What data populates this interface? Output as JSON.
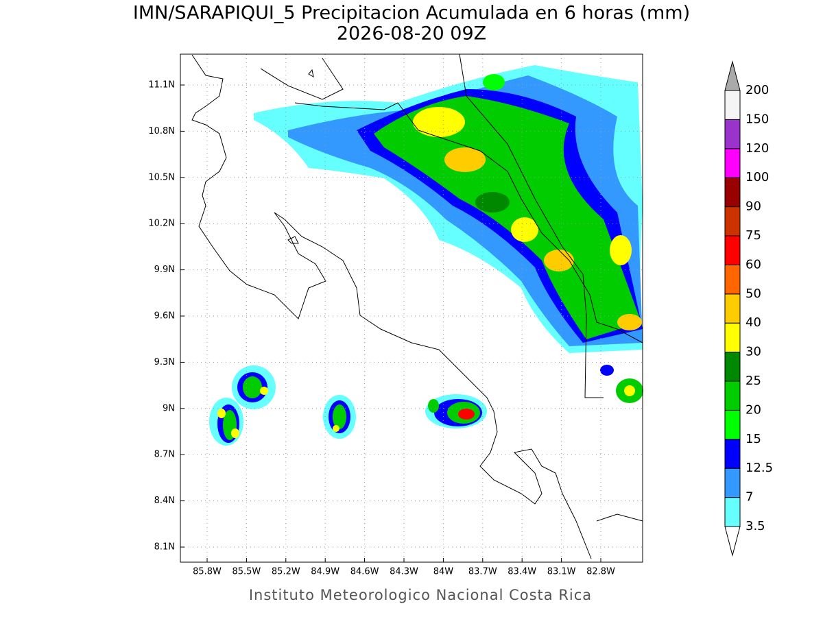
{
  "title": [
    "IMN/SARAPIQUI_5 Precipitacion Acumulada en 6 horas (mm)",
    "2026-08-20 09Z"
  ],
  "map": {
    "lat_ticks": [
      "11.1N",
      "10.8N",
      "10.5N",
      "10.2N",
      "9.9N",
      "9.6N",
      "9.3N",
      "9N",
      "8.7N",
      "8.4N",
      "8.1N"
    ],
    "lon_ticks": [
      "85.8W",
      "85.5W",
      "85.2W",
      "84.9W",
      "84.6W",
      "84.3W",
      "84W",
      "83.7W",
      "83.4W",
      "83.1W",
      "82.8W"
    ]
  },
  "colorbar": {
    "levels": [
      "3.5",
      "7",
      "12.5",
      "15",
      "20",
      "25",
      "30",
      "40",
      "50",
      "60",
      "75",
      "90",
      "100",
      "120",
      "150",
      "200"
    ],
    "colors": [
      "#66ffff",
      "#3399ff",
      "#0000ff",
      "#00ff00",
      "#00cc00",
      "#008800",
      "#ffff00",
      "#ffcc00",
      "#ff6600",
      "#ff0000",
      "#cc3300",
      "#990000",
      "#ff00ff",
      "#9933cc",
      "#f5f5f5"
    ],
    "under_color": "#ffffff",
    "over_color": "#aaaaaa"
  },
  "footer": "Instituto Meteorologico Nacional Costa Rica"
}
